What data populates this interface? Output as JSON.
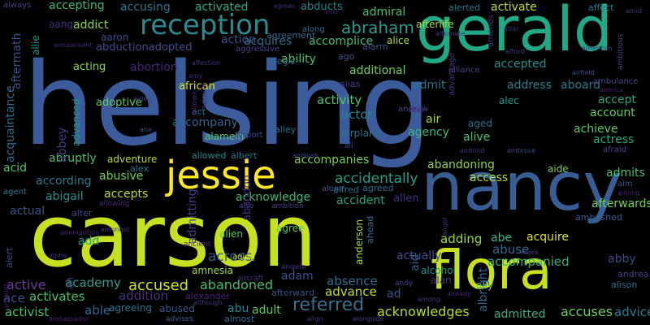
{
  "words": [
    {
      "text": "helsing",
      "color": "#3b5b9a"
    },
    {
      "text": "carson",
      "color": "#c7e021"
    },
    {
      "text": "nancy",
      "color": "#375d93"
    },
    {
      "text": "gerald",
      "color": "#22a884"
    },
    {
      "text": "flora",
      "color": "#c8e020"
    },
    {
      "text": "jessie",
      "color": "#fde725"
    },
    {
      "text": "reception",
      "color": "#2c8a8d"
    },
    {
      "text": "abraham",
      "color": "#2b9c8a"
    },
    {
      "text": "referred",
      "color": "#3b6f8e"
    },
    {
      "text": "accused",
      "color": "#d0e11c"
    },
    {
      "text": "abandoned",
      "color": "#42be71"
    },
    {
      "text": "accompanied",
      "color": "#33b07a"
    },
    {
      "text": "acknowledges",
      "color": "#b5de2b"
    },
    {
      "text": "accuses",
      "color": "#6ccd5a"
    },
    {
      "text": "admitted",
      "color": "#3ab17a"
    },
    {
      "text": "activates",
      "color": "#48c16e"
    },
    {
      "text": "addition",
      "color": "#46307e"
    },
    {
      "text": "academy",
      "color": "#2f9e8a"
    },
    {
      "text": "active",
      "color": "#6a3d9a"
    },
    {
      "text": "activist",
      "color": "#4ac16d"
    },
    {
      "text": "ace",
      "color": "#3b518b"
    },
    {
      "text": "able",
      "color": "#31678e"
    },
    {
      "text": "adult",
      "color": "#5cc863"
    },
    {
      "text": "absence",
      "color": "#2e6f8e"
    },
    {
      "text": "advance",
      "color": "#c2df23"
    },
    {
      "text": "actually",
      "color": "#3c508b"
    },
    {
      "text": "actual",
      "color": "#3a548c"
    },
    {
      "text": "across",
      "color": "#37598c"
    },
    {
      "text": "adding",
      "color": "#9dd93b"
    },
    {
      "text": "abuse",
      "color": "#31688e"
    },
    {
      "text": "acquire",
      "color": "#dde318"
    },
    {
      "text": "abe",
      "color": "#35b779"
    },
    {
      "text": "abby",
      "color": "#3d4d8a"
    },
    {
      "text": "account",
      "color": "#67cc5c"
    },
    {
      "text": "accept",
      "color": "#21a685"
    },
    {
      "text": "actress",
      "color": "#22a884"
    },
    {
      "text": "achieve",
      "color": "#57c665"
    },
    {
      "text": "admits",
      "color": "#48c16e"
    },
    {
      "text": "afterwards",
      "color": "#71cf57"
    },
    {
      "text": "aboard",
      "color": "#2a788e"
    },
    {
      "text": "accepted",
      "color": "#21908c"
    },
    {
      "text": "activity",
      "color": "#54c568"
    },
    {
      "text": "actor",
      "color": "#26828e"
    },
    {
      "text": "air",
      "color": "#a0da39"
    },
    {
      "text": "alive",
      "color": "#4ac16d"
    },
    {
      "text": "agency",
      "color": "#3bbb75"
    },
    {
      "text": "airplane",
      "color": "#2c718e"
    },
    {
      "text": "address",
      "color": "#27808e"
    },
    {
      "text": "admit",
      "color": "#2a778e"
    },
    {
      "text": "additional",
      "color": "#73d056"
    },
    {
      "text": "ability",
      "color": "#4ec36b"
    },
    {
      "text": "acquires",
      "color": "#2f6c8e"
    },
    {
      "text": "accomplice",
      "color": "#3fbc73"
    },
    {
      "text": "admiral",
      "color": "#48c16e"
    },
    {
      "text": "abducts",
      "color": "#26828e"
    },
    {
      "text": "accusing",
      "color": "#2a768e"
    },
    {
      "text": "activated",
      "color": "#28ae80"
    },
    {
      "text": "activate",
      "color": "#c0df25"
    },
    {
      "text": "accepting",
      "color": "#3aba76"
    },
    {
      "text": "addict",
      "color": "#8ed645"
    },
    {
      "text": "aaron",
      "color": "#3d4e8a"
    },
    {
      "text": "action",
      "color": "#3b528b"
    },
    {
      "text": "abductionadopted",
      "color": "#3d4d8a"
    },
    {
      "text": "acting",
      "color": "#93d741"
    },
    {
      "text": "abortion",
      "color": "#482475"
    },
    {
      "text": "adoptive",
      "color": "#62cb5f"
    },
    {
      "text": "accompany",
      "color": "#33638d"
    },
    {
      "text": "abruptly",
      "color": "#4cc26c"
    },
    {
      "text": "abusive",
      "color": "#73d056"
    },
    {
      "text": "according",
      "color": "#2a788e"
    },
    {
      "text": "acid",
      "color": "#50c46a"
    },
    {
      "text": "abigail",
      "color": "#21918c"
    },
    {
      "text": "accepts",
      "color": "#b8de29"
    },
    {
      "text": "acknowledge",
      "color": "#38b977"
    },
    {
      "text": "accident",
      "color": "#21a685"
    },
    {
      "text": "accompanies",
      "color": "#7ad151"
    },
    {
      "text": "accidentally",
      "color": "#1fa187"
    },
    {
      "text": "access",
      "color": "#b0dd2f"
    },
    {
      "text": "abandoning",
      "color": "#8bd646"
    },
    {
      "text": "allen",
      "color": "#46337f"
    },
    {
      "text": "add",
      "color": "#22a884"
    },
    {
      "text": "ad",
      "color": "#39558c"
    },
    {
      "text": "adam",
      "color": "#3a538b"
    },
    {
      "text": "albright",
      "color": "#31688e"
    },
    {
      "text": "african",
      "color": "#e5e419"
    },
    {
      "text": "aid",
      "color": "#365c8d"
    },
    {
      "text": "alamein",
      "color": "#54c568"
    },
    {
      "text": "alice",
      "color": "#a8db34"
    },
    {
      "text": "afterlife",
      "color": "#a5db36"
    },
    {
      "text": "alerted",
      "color": "#2a788e"
    },
    {
      "text": "affect",
      "color": "#287d8e"
    },
    {
      "text": "aide",
      "color": "#77d153"
    },
    {
      "text": "aim",
      "color": "#3b528b"
    },
    {
      "text": "agree",
      "color": "#5ec962"
    },
    {
      "text": "alien",
      "color": "#5ec962"
    },
    {
      "text": "abandon",
      "color": "#472c7a"
    },
    {
      "text": "admitting",
      "color": "#424086"
    },
    {
      "text": "abused",
      "color": "#38588c"
    },
    {
      "text": "abu",
      "color": "#24878e"
    },
    {
      "text": "alexander",
      "color": "#482475"
    },
    {
      "text": "alec",
      "color": "#1f9e89"
    },
    {
      "text": "ally",
      "color": "#7ad151"
    },
    {
      "text": "alan",
      "color": "#46337f"
    },
    {
      "text": "alcohol",
      "color": "#1f998a"
    },
    {
      "text": "aged",
      "color": "#2f6c8e"
    },
    {
      "text": "allowed",
      "color": "#23888e"
    },
    {
      "text": "albert",
      "color": "#2a778e"
    },
    {
      "text": "adventure",
      "color": "#b5de2b"
    },
    {
      "text": "alex",
      "color": "#2c728e"
    },
    {
      "text": "alfred",
      "color": "#2e6e8e"
    },
    {
      "text": "allie",
      "color": "#2d708e"
    },
    {
      "text": "agent",
      "color": "#287d8e"
    },
    {
      "text": "aftermath",
      "color": "#1f968b"
    },
    {
      "text": "aang",
      "color": "#46327e"
    },
    {
      "text": "acquaintance",
      "color": "#3b528b"
    },
    {
      "text": "abbey",
      "color": "#2d708e"
    },
    {
      "text": "advanced",
      "color": "#453882"
    },
    {
      "text": "aggressive",
      "color": "#1f998a"
    },
    {
      "text": "agreement",
      "color": "#424086"
    },
    {
      "text": "along",
      "color": "#2f6b8e"
    },
    {
      "text": "alarm",
      "color": "#2e6e8e"
    },
    {
      "text": "ago",
      "color": "#39558c"
    },
    {
      "text": "alliance",
      "color": "#3a548c"
    },
    {
      "text": "alias",
      "color": "#3e4989"
    },
    {
      "text": "alley",
      "color": "#433e85"
    },
    {
      "text": "airport",
      "color": "#2d708e"
    },
    {
      "text": "also",
      "color": "#3e4989"
    },
    {
      "text": "ambition",
      "color": "#3f4889"
    },
    {
      "text": "anderson",
      "color": "#424086"
    },
    {
      "text": "ahead",
      "color": "#a0da39"
    },
    {
      "text": "aging",
      "color": "#2e6f8e"
    },
    {
      "text": "amnesia",
      "color": "#c8e020"
    },
    {
      "text": "afterward",
      "color": "#a2da37"
    },
    {
      "text": "agreeing",
      "color": "#3b518b"
    },
    {
      "text": "almost",
      "color": "#2a768e"
    },
    {
      "text": "alert",
      "color": "#2f6c8e"
    },
    {
      "text": "allowing",
      "color": "#3e4c8a"
    },
    {
      "text": "alter",
      "color": "#482878"
    },
    {
      "text": "ah",
      "color": "#3e4a89"
    },
    {
      "text": "advises",
      "color": "#453882"
    },
    {
      "text": "ambushed",
      "color": "#34608d"
    },
    {
      "text": "alison",
      "color": "#375b8d"
    },
    {
      "text": "agreed",
      "color": "#2e6e8e"
    },
    {
      "text": "alone",
      "color": "#2f6b8e"
    },
    {
      "text": "aircraft",
      "color": "#375a8c"
    },
    {
      "text": "angela",
      "color": "#46337f"
    },
    {
      "text": "andy",
      "color": "#463480"
    },
    {
      "text": "andrea",
      "color": "#404688"
    },
    {
      "text": "advice",
      "color": "#3f4788"
    },
    {
      "text": "act",
      "color": "#277f8e"
    },
    {
      "text": "ali",
      "color": "#2d718e"
    },
    {
      "text": "amid",
      "color": "#3e4a89"
    },
    {
      "text": "always",
      "color": "#472d7b"
    },
    {
      "text": "agrees",
      "color": "#414287"
    },
    {
      "text": "alternate",
      "color": "#482878"
    },
    {
      "text": "altar",
      "color": "#433d84"
    },
    {
      "text": "amends",
      "color": "#46327e"
    },
    {
      "text": "afford",
      "color": "#462f7e"
    },
    {
      "text": "american",
      "color": "#46337f"
    },
    {
      "text": "ambitious",
      "color": "#453781"
    },
    {
      "text": "airfield",
      "color": "#3f4788"
    },
    {
      "text": "america",
      "color": "#3c4f8a"
    },
    {
      "text": "ambulance",
      "color": "#482071"
    },
    {
      "text": "afraid",
      "color": "#3f4889"
    },
    {
      "text": "advantage",
      "color": "#3e4989"
    },
    {
      "text": "aiming",
      "color": "#46327e"
    },
    {
      "text": "ambush",
      "color": "#482576"
    },
    {
      "text": "android",
      "color": "#3e4c8a"
    },
    {
      "text": "ambrose",
      "color": "#463480"
    },
    {
      "text": "andie",
      "color": "#3f4889"
    },
    {
      "text": "ammunition",
      "color": "#481a6c"
    },
    {
      "text": "amount",
      "color": "#482374"
    },
    {
      "text": "alpha",
      "color": "#481d6f"
    },
    {
      "text": "amongst",
      "color": "#472f7d"
    },
    {
      "text": "ancient",
      "color": "#453581"
    },
    {
      "text": "align",
      "color": "#482979"
    },
    {
      "text": "alongside",
      "color": "#46307e"
    },
    {
      "text": "although",
      "color": "#433e85"
    },
    {
      "text": "already",
      "color": "#46337f"
    },
    {
      "text": "among",
      "color": "#482677"
    },
    {
      "text": "angel",
      "color": "#472d7b"
    },
    {
      "text": "angels",
      "color": "#46337f"
    },
    {
      "text": "ambassador",
      "color": "#414487"
    },
    {
      "text": "amusement",
      "color": "#482173"
    },
    {
      "text": "aided",
      "color": "#482475"
    },
    {
      "text": "amy",
      "color": "#3f4889"
    },
    {
      "text": "affection",
      "color": "#482878"
    },
    {
      "text": "andrew",
      "color": "#472f7d"
    },
    {
      "text": "affair",
      "color": "#3e4989"
    },
    {
      "text": "ana",
      "color": "#482475"
    },
    {
      "text": "allows",
      "color": "#3d4e8a"
    },
    {
      "text": "admire",
      "color": "#482576"
    },
    {
      "text": "aegis",
      "color": "#472c7a"
    },
    {
      "text": "al",
      "color": "#2f6c8e"
    }
  ]
}
